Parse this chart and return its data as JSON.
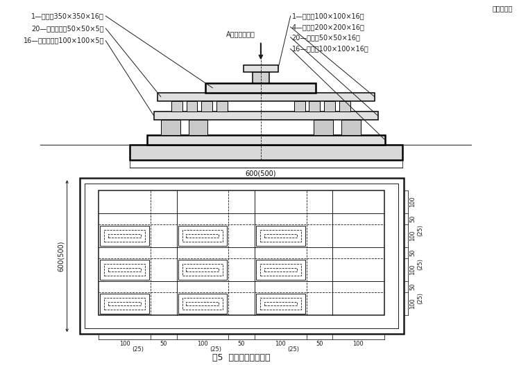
{
  "fig_w": 7.48,
  "fig_h": 5.27,
  "dpi": 100,
  "bg": "#ffffff",
  "lc": "#1a1a1a",
  "title": "图5  地板均布荷载试验",
  "unit": "单位为毫米",
  "top_labels_left": [
    "1—压块（350×350×16）",
    "20—硬胶垫块（50×50×5）",
    "16—硬胶垫块（100×100×5）"
  ],
  "top_labels_right": [
    "1—压块（100×100×16）",
    "4—压块（200×200×16）",
    "20—压块（50×50×16）",
    "16—压块（100×100×16）"
  ],
  "load_label": "A（均布载荷）",
  "dim_600": "600(500)",
  "left_dim": "600(500)",
  "btm_dims": [
    "100",
    "50",
    "100",
    "50",
    "100",
    "50",
    "100"
  ],
  "btm_parens": [
    "(25)",
    "(25)",
    "(25)"
  ],
  "right_dims": [
    "100",
    "50",
    "100",
    "50",
    "100",
    "50",
    "100"
  ],
  "right_parens": [
    "(25)",
    "(25)",
    "(25)"
  ]
}
